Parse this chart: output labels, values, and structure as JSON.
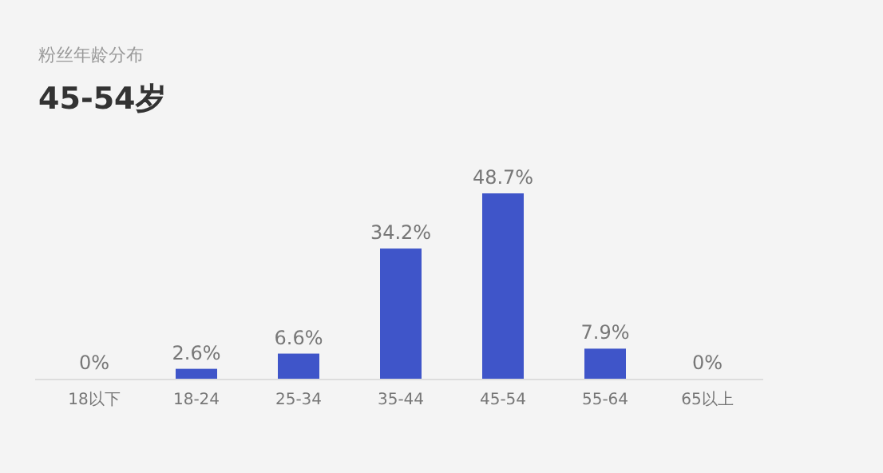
{
  "chart_data": {
    "type": "bar",
    "title": "粉丝年龄分布",
    "subtitle": "45-54岁",
    "categories": [
      "18以下",
      "18-24",
      "25-34",
      "35-44",
      "45-54",
      "55-64",
      "65以上"
    ],
    "values": [
      0,
      2.6,
      6.6,
      34.2,
      48.7,
      7.9,
      0
    ],
    "value_labels": [
      "0%",
      "2.6%",
      "6.6%",
      "34.2%",
      "48.7%",
      "7.9%",
      "0%"
    ],
    "color": "#3f55c9"
  }
}
